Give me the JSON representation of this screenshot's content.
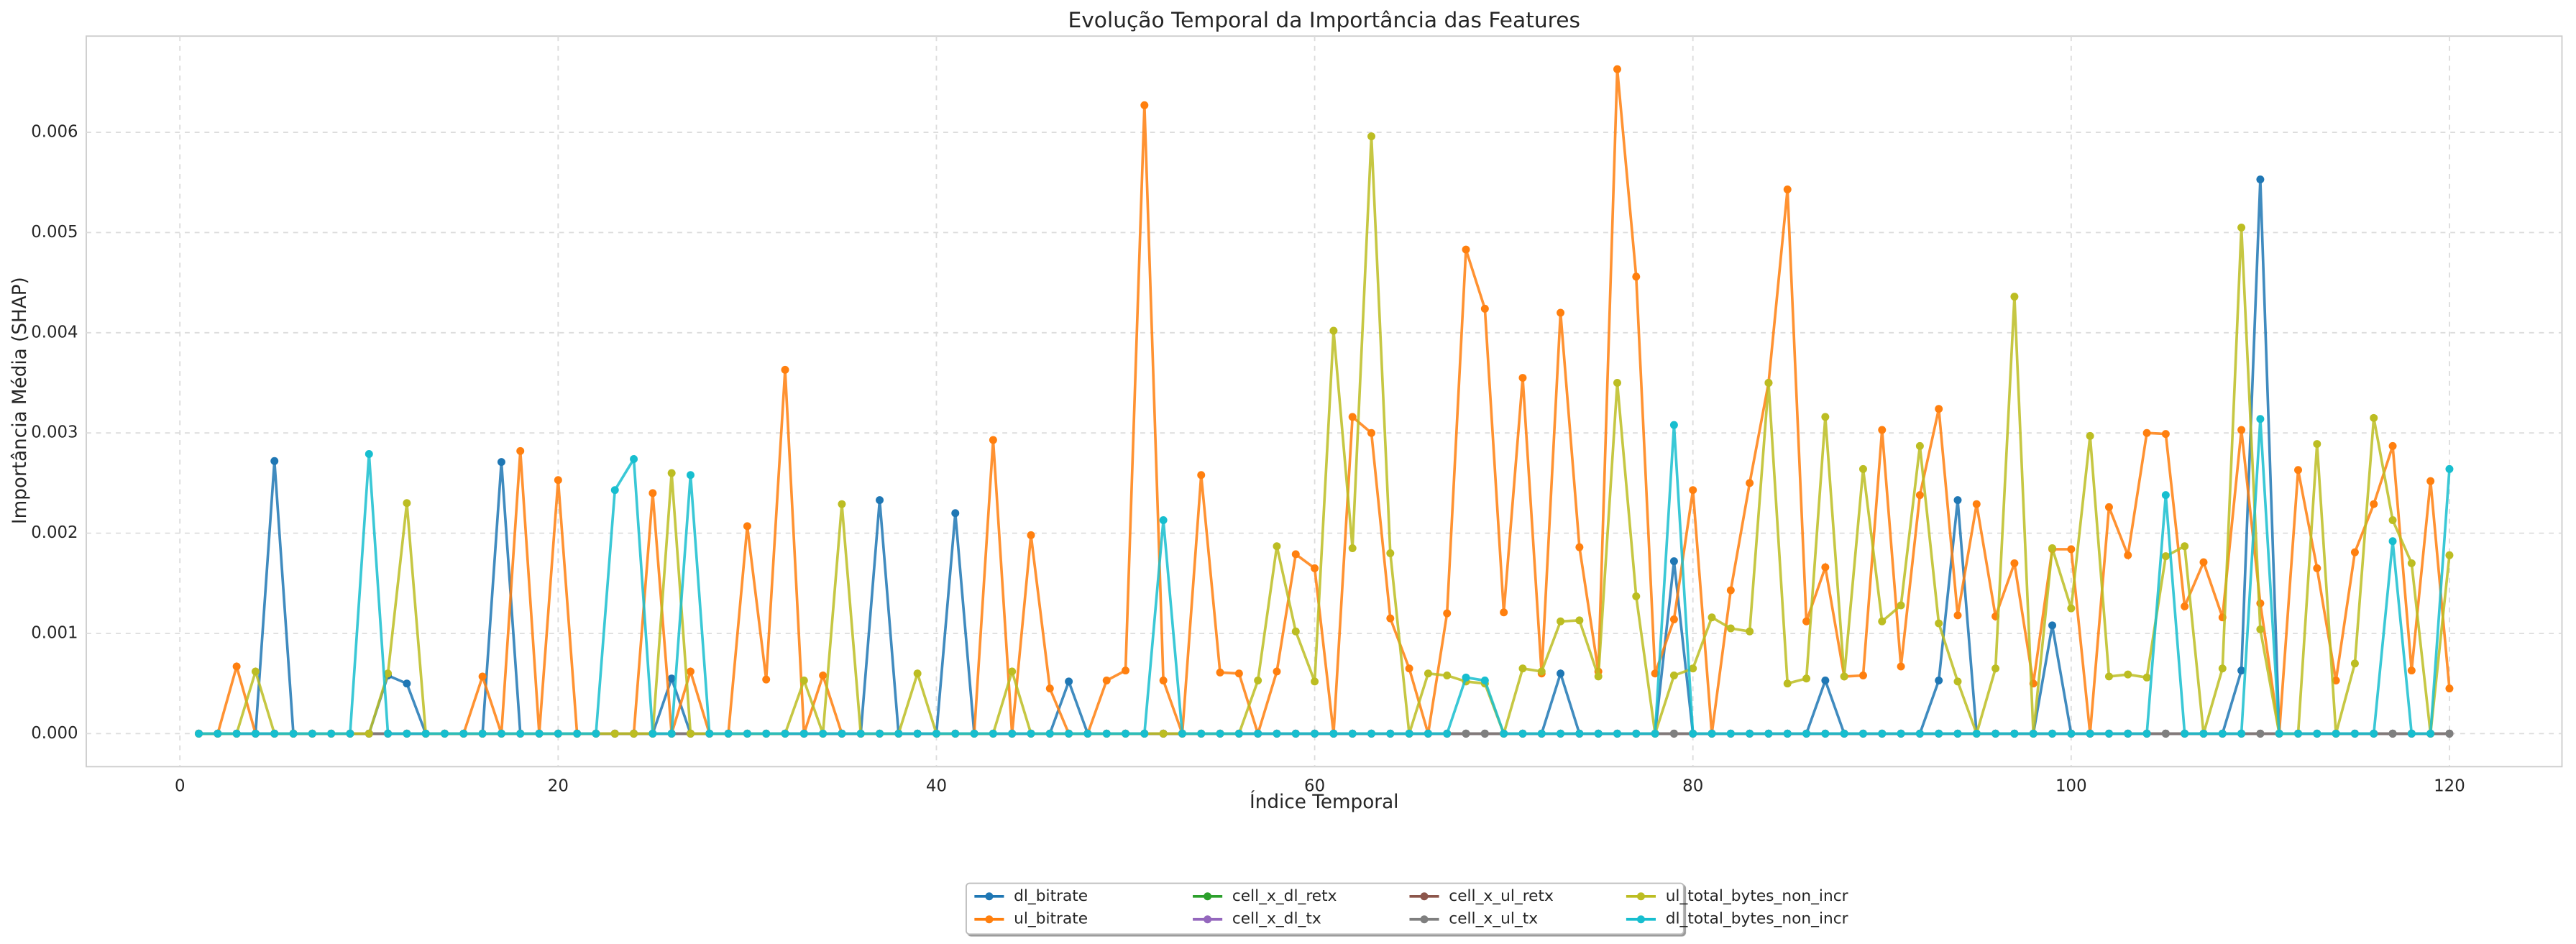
{
  "chart_data": {
    "type": "line",
    "title": "Evolução Temporal da Importância das Features",
    "xlabel": "Índice Temporal",
    "ylabel": "Importância Média (SHAP)",
    "x": [
      1,
      2,
      3,
      4,
      5,
      6,
      7,
      8,
      9,
      10,
      11,
      12,
      13,
      14,
      15,
      16,
      17,
      18,
      19,
      20,
      21,
      22,
      23,
      24,
      25,
      26,
      27,
      28,
      29,
      30,
      31,
      32,
      33,
      34,
      35,
      36,
      37,
      38,
      39,
      40,
      41,
      42,
      43,
      44,
      45,
      46,
      47,
      48,
      49,
      50,
      51,
      52,
      53,
      54,
      55,
      56,
      57,
      58,
      59,
      60,
      61,
      62,
      63,
      64,
      65,
      66,
      67,
      68,
      69,
      70,
      71,
      72,
      73,
      74,
      75,
      76,
      77,
      78,
      79,
      80,
      81,
      82,
      83,
      84,
      85,
      86,
      87,
      88,
      89,
      90,
      91,
      92,
      93,
      94,
      95,
      96,
      97,
      98,
      99,
      100,
      101,
      102,
      103,
      104,
      105,
      106,
      107,
      108,
      109,
      110,
      111,
      112,
      113,
      114,
      115,
      116,
      117,
      118,
      119,
      120
    ],
    "xlim": [
      -4.95,
      125.95
    ],
    "xticks": [
      0,
      20,
      40,
      60,
      80,
      100,
      120
    ],
    "ylim": [
      -0.00033,
      0.00696
    ],
    "yticks": [
      {
        "value": 0,
        "label": "0.000"
      },
      {
        "value": 0.001,
        "label": "0.001"
      },
      {
        "value": 0.002,
        "label": "0.002"
      },
      {
        "value": 0.003,
        "label": "0.003"
      },
      {
        "value": 0.004,
        "label": "0.004"
      },
      {
        "value": 0.005,
        "label": "0.005"
      },
      {
        "value": 0.006,
        "label": "0.006"
      }
    ],
    "grid": true,
    "legend": "lower center",
    "series": [
      {
        "name": "dl_bitrate",
        "color": "#1f77b4",
        "values": [
          0,
          0,
          0,
          0,
          0.00272,
          0,
          0,
          0,
          0,
          0,
          0.00058,
          0.0005,
          0,
          0,
          0,
          0,
          0.00271,
          0,
          0,
          0,
          0,
          0,
          0,
          0,
          0,
          0.00055,
          0,
          0,
          0,
          0,
          0,
          0,
          0,
          0,
          0,
          0,
          0.00233,
          0,
          0,
          0,
          0.0022,
          0,
          0,
          0,
          0,
          0,
          0.00052,
          0,
          0,
          0,
          0,
          0,
          0,
          0,
          0,
          0,
          0,
          0,
          0,
          0,
          0,
          0,
          0,
          0,
          0,
          0,
          0,
          0,
          0,
          0,
          0,
          0,
          0.0006,
          0,
          0,
          0,
          0,
          0,
          0.00172,
          0,
          0,
          0,
          0,
          0,
          0,
          0,
          0.00053,
          0,
          0,
          0,
          0,
          0,
          0.00053,
          0.00233,
          0,
          0,
          0,
          0,
          0.00108,
          0,
          0,
          0,
          0,
          0,
          0,
          0,
          0,
          0,
          0.00063,
          0.00553,
          0,
          0,
          0,
          0,
          0,
          0,
          0,
          0,
          0,
          0
        ]
      },
      {
        "name": "ul_bitrate",
        "color": "#ff7f0e",
        "values": [
          0,
          0,
          0.00067,
          0,
          0,
          0,
          0,
          0,
          0,
          0,
          0,
          0,
          0,
          0,
          0,
          0.00057,
          0,
          0.00282,
          0,
          0.00253,
          0,
          0,
          0,
          0,
          0.0024,
          0,
          0.00062,
          0,
          0,
          0.00207,
          0.00054,
          0.00363,
          0,
          0.00058,
          0,
          0,
          0,
          0,
          0,
          0,
          0,
          0,
          0.00293,
          0,
          0.00198,
          0.00045,
          0,
          0,
          0.00053,
          0.00063,
          0.00627,
          0.00053,
          0,
          0.00258,
          0.00061,
          0.0006,
          0,
          0.00062,
          0.00179,
          0.00165,
          0,
          0.00316,
          0.003,
          0.00115,
          0.00065,
          0,
          0.0012,
          0.00483,
          0.00424,
          0.00121,
          0.00355,
          0.0006,
          0.0042,
          0.00186,
          0.00062,
          0.00663,
          0.00456,
          0.0006,
          0.00114,
          0.00243,
          0,
          0.00143,
          0.0025,
          0.0035,
          0.00543,
          0.00112,
          0.00166,
          0.00057,
          0.00058,
          0.00303,
          0.00067,
          0.00238,
          0.00324,
          0.00118,
          0.00229,
          0.00117,
          0.0017,
          0.0005,
          0.00184,
          0.00184,
          0,
          0.00226,
          0.00178,
          0.003,
          0.00299,
          0.00127,
          0.00171,
          0.00116,
          0.00303,
          0.0013,
          0,
          0.00263,
          0.00165,
          0.00053,
          0.00181,
          0.00229,
          0.00287,
          0.00063,
          0.00252,
          0.00045
        ]
      },
      {
        "name": "cell_x_dl_retx",
        "color": "#2ca02c",
        "values": [
          0,
          0,
          0,
          0,
          0,
          0,
          0,
          0,
          0,
          0,
          0,
          0,
          0,
          0,
          0,
          0,
          0,
          0,
          0,
          0,
          0,
          0,
          0,
          0,
          0,
          0,
          0,
          0,
          0,
          0,
          0,
          0,
          0,
          0,
          0,
          0,
          0,
          0,
          0,
          0,
          0,
          0,
          0,
          0,
          0,
          0,
          0,
          0,
          0,
          0,
          0,
          0,
          0,
          0,
          0,
          0,
          0,
          0,
          0,
          0,
          0,
          0,
          0,
          0,
          0,
          0,
          0,
          0,
          0,
          0,
          0,
          0,
          0,
          0,
          0,
          0,
          0,
          0,
          0,
          0,
          0,
          0,
          0,
          0,
          0,
          0,
          0,
          0,
          0,
          0,
          0,
          0,
          0,
          0,
          0,
          0,
          0,
          0,
          0,
          0,
          0,
          0,
          0,
          0,
          0,
          0,
          0,
          0,
          0,
          0,
          0,
          0,
          0,
          0,
          0,
          0,
          0,
          0,
          0,
          0
        ]
      },
      {
        "name": "cell_x_dl_tx",
        "color": "#9467bd",
        "values": [
          0,
          0,
          0,
          0,
          0,
          0,
          0,
          0,
          0,
          0,
          0,
          0,
          0,
          0,
          0,
          0,
          0,
          0,
          0,
          0,
          0,
          0,
          0,
          0,
          0,
          0,
          0,
          0,
          0,
          0,
          0,
          0,
          0,
          0,
          0,
          0,
          0,
          0,
          0,
          0,
          0,
          0,
          0,
          0,
          0,
          0,
          0,
          0,
          0,
          0,
          0,
          0,
          0,
          0,
          0,
          0,
          0,
          0,
          0,
          0,
          0,
          0,
          0,
          0,
          0,
          0,
          0,
          0,
          0,
          0,
          0,
          0,
          0,
          0,
          0,
          0,
          0,
          0,
          0,
          0,
          0,
          0,
          0,
          0,
          0,
          0,
          0,
          0,
          0,
          0,
          0,
          0,
          0,
          0,
          0,
          0,
          0,
          0,
          0,
          0,
          0,
          0,
          0,
          0,
          0,
          0,
          0,
          0,
          0,
          0,
          0,
          0,
          0,
          0,
          0,
          0,
          0,
          0,
          0,
          0
        ]
      },
      {
        "name": "cell_x_ul_retx",
        "color": "#8c564b",
        "values": [
          0,
          0,
          0,
          0,
          0,
          0,
          0,
          0,
          0,
          0,
          0,
          0,
          0,
          0,
          0,
          0,
          0,
          0,
          0,
          0,
          0,
          0,
          0,
          0,
          0,
          0,
          0,
          0,
          0,
          0,
          0,
          0,
          0,
          0,
          0,
          0,
          0,
          0,
          0,
          0,
          0,
          0,
          0,
          0,
          0,
          0,
          0,
          0,
          0,
          0,
          0,
          0,
          0,
          0,
          0,
          0,
          0,
          0,
          0,
          0,
          0,
          0,
          0,
          0,
          0,
          0,
          0,
          0,
          0,
          0,
          0,
          0,
          0,
          0,
          0,
          0,
          0,
          0,
          0,
          0,
          0,
          0,
          0,
          0,
          0,
          0,
          0,
          0,
          0,
          0,
          0,
          0,
          0,
          0,
          0,
          0,
          0,
          0,
          0,
          0,
          0,
          0,
          0,
          0,
          0,
          0,
          0,
          0,
          0,
          0,
          0,
          0,
          0,
          0,
          0,
          0,
          0,
          0,
          0,
          0
        ]
      },
      {
        "name": "cell_x_ul_tx",
        "color": "#7f7f7f",
        "values": [
          0,
          0,
          0,
          0,
          0,
          0,
          0,
          0,
          0,
          0,
          0,
          0,
          0,
          0,
          0,
          0,
          0,
          0,
          0,
          0,
          0,
          0,
          0,
          0,
          0,
          0,
          0,
          0,
          0,
          0,
          0,
          0,
          0,
          0,
          0,
          0,
          0,
          0,
          0,
          0,
          0,
          0,
          0,
          0,
          0,
          0,
          0,
          0,
          0,
          0,
          0,
          0,
          0,
          0,
          0,
          0,
          0,
          0,
          0,
          0,
          0,
          0,
          0,
          0,
          0,
          0,
          0,
          0,
          0,
          0,
          0,
          0,
          0,
          0,
          0,
          0,
          0,
          0,
          0,
          0,
          0,
          0,
          0,
          0,
          0,
          0,
          0,
          0,
          0,
          0,
          0,
          0,
          0,
          0,
          0,
          0,
          0,
          0,
          0,
          0,
          0,
          0,
          0,
          0,
          0,
          0,
          0,
          0,
          0,
          0,
          0,
          0,
          0,
          0,
          0,
          0,
          0,
          0,
          0,
          0
        ]
      },
      {
        "name": "ul_total_bytes_non_incr",
        "color": "#bcbd22",
        "values": [
          0,
          0,
          0,
          0.00062,
          0,
          0,
          0,
          0,
          0,
          0,
          0.0006,
          0.0023,
          0,
          0,
          0,
          0,
          0,
          0,
          0,
          0,
          0,
          0,
          0,
          0,
          0,
          0.0026,
          0,
          0,
          0,
          0,
          0,
          0,
          0.00053,
          0,
          0.00229,
          0,
          0,
          0,
          0.0006,
          0,
          0,
          0,
          0,
          0.00062,
          0,
          0,
          0,
          0,
          0,
          0,
          0,
          0,
          0,
          0,
          0,
          0,
          0.00053,
          0.00187,
          0.00102,
          0.00052,
          0.00402,
          0.00185,
          0.00596,
          0.0018,
          0,
          0.0006,
          0.00058,
          0.00052,
          0.0005,
          0,
          0.00065,
          0.00062,
          0.00112,
          0.00113,
          0.00057,
          0.0035,
          0.00137,
          0,
          0.00058,
          0.00065,
          0.00116,
          0.00105,
          0.00102,
          0.0035,
          0.0005,
          0.00055,
          0.00316,
          0.00057,
          0.00264,
          0.00112,
          0.00128,
          0.00287,
          0.0011,
          0.00052,
          0,
          0.00065,
          0.00436,
          0,
          0.00185,
          0.00125,
          0.00297,
          0.00057,
          0.00059,
          0.00056,
          0.00177,
          0.00187,
          0,
          0.00065,
          0.00505,
          0.00104,
          0,
          0,
          0.00289,
          0,
          0.0007,
          0.00315,
          0.00213,
          0.0017,
          0,
          0.00178
        ]
      },
      {
        "name": "dl_total_bytes_non_incr",
        "color": "#17becf",
        "values": [
          0,
          0,
          0,
          0,
          0,
          0,
          0,
          0,
          0,
          0.00279,
          0,
          0,
          0,
          0,
          0,
          0,
          0,
          0,
          0,
          0,
          0,
          0,
          0.00243,
          0.00274,
          0,
          0,
          0.00258,
          0,
          0,
          0,
          0,
          0,
          0,
          0,
          0,
          0,
          0,
          0,
          0,
          0,
          0,
          0,
          0,
          0,
          0,
          0,
          0,
          0,
          0,
          0,
          0,
          0.00213,
          0,
          0,
          0,
          0,
          0,
          0,
          0,
          0,
          0,
          0,
          0,
          0,
          0,
          0,
          0,
          0.00056,
          0.00053,
          0,
          0,
          0,
          0,
          0,
          0,
          0,
          0,
          0,
          0.00308,
          0,
          0,
          0,
          0,
          0,
          0,
          0,
          0,
          0,
          0,
          0,
          0,
          0,
          0,
          0,
          0,
          0,
          0,
          0,
          0,
          0,
          0,
          0,
          0,
          0,
          0.00238,
          0,
          0,
          0,
          0,
          0.00314,
          0,
          0,
          0,
          0,
          0,
          0,
          0.00192,
          0,
          0,
          0.00264
        ]
      }
    ]
  }
}
